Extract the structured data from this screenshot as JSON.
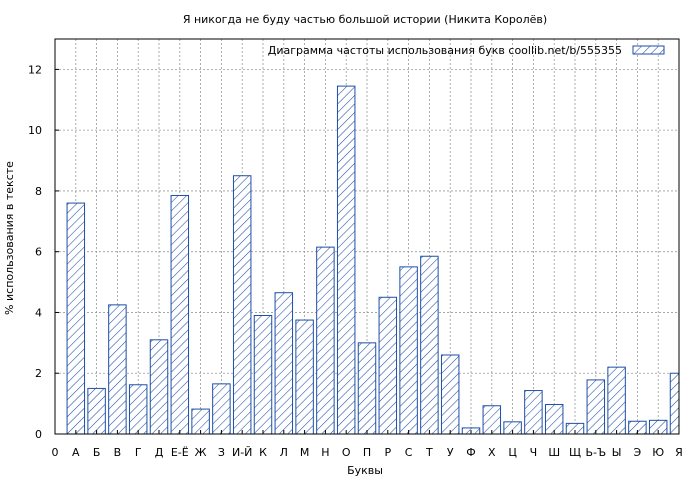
{
  "chart_data": {
    "type": "bar",
    "title": "Я никогда не буду частью большой истории (Никита Королёв)",
    "xlabel": "Буквы",
    "ylabel": "% использования в тексте",
    "ylim": [
      0,
      13
    ],
    "yticks": [
      0,
      2,
      4,
      6,
      8,
      10,
      12
    ],
    "grid": true,
    "legend_position": "top-right",
    "x_tick_labels": [
      "0",
      "А",
      "Б",
      "В",
      "Г",
      "Д",
      "Е-Ё",
      "Ж",
      "З",
      "И-Й",
      "К",
      "Л",
      "М",
      "Н",
      "О",
      "П",
      "Р",
      "С",
      "Т",
      "У",
      "Ф",
      "Х",
      "Ц",
      "Ч",
      "Ш",
      "Щ",
      "Ь-Ъ",
      "Ы",
      "Э",
      "Ю",
      "Я"
    ],
    "categories": [
      "А",
      "Б",
      "В",
      "Г",
      "Д",
      "Е-Ё",
      "Ж",
      "З",
      "И-Й",
      "К",
      "Л",
      "М",
      "Н",
      "О",
      "П",
      "Р",
      "С",
      "Т",
      "У",
      "Ф",
      "Х",
      "Ц",
      "Ч",
      "Ш",
      "Щ",
      "Ь-Ъ",
      "Ы",
      "Э",
      "Ю",
      "Я"
    ],
    "series": [
      {
        "name": "Диаграмма частоты использования букв  coollib.net/b/555355",
        "color": "#1f4ea8",
        "values": [
          7.6,
          1.5,
          4.25,
          1.62,
          3.1,
          7.85,
          0.82,
          1.65,
          8.5,
          3.9,
          4.65,
          3.75,
          6.15,
          11.45,
          3.0,
          4.5,
          5.5,
          5.85,
          2.6,
          0.2,
          0.93,
          0.4,
          1.43,
          0.97,
          0.35,
          1.78,
          2.2,
          0.42,
          0.45,
          2.0
        ]
      }
    ]
  }
}
